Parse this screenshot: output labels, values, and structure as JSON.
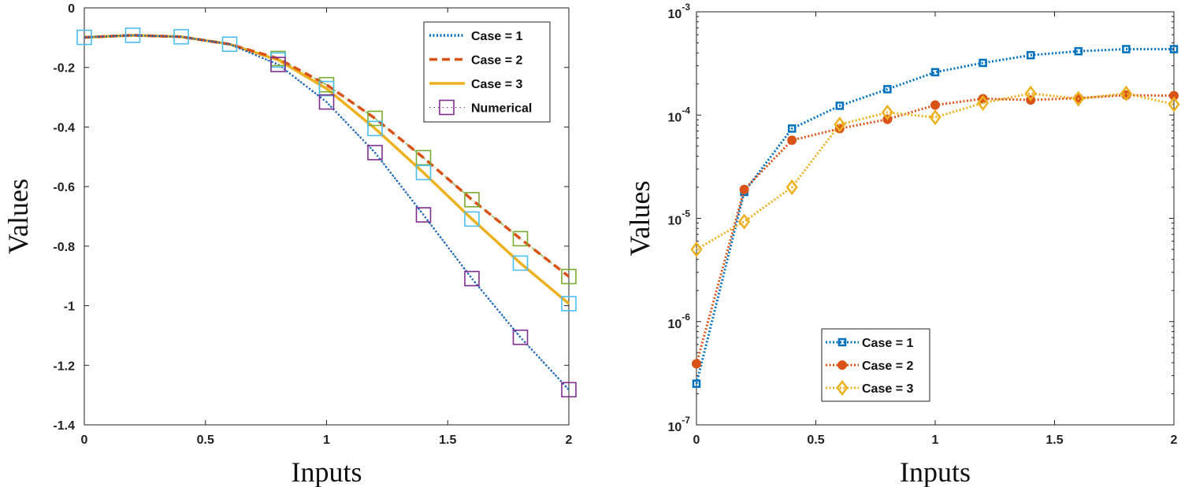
{
  "colors": {
    "blue": "#0072BD",
    "red": "#D95319",
    "yellow": "#EDB120",
    "purple": "#7E2F8E",
    "green": "#77AC30",
    "cyan": "#4DBEEE"
  },
  "chart_data": [
    {
      "type": "line",
      "title": "",
      "xlabel": "Inputs",
      "ylabel": "Values",
      "xlim": [
        0,
        2
      ],
      "ylim": [
        -1.4,
        0
      ],
      "xticks": [
        "0",
        "0.5",
        "1",
        "1.5",
        "2"
      ],
      "yticks": [
        "0",
        "-0.2",
        "-0.4",
        "-0.6",
        "-0.8",
        "-1",
        "-1.2",
        "-1.4"
      ],
      "legend_position": "top-right",
      "x": [
        0,
        0.2,
        0.4,
        0.6,
        0.8,
        1.0,
        1.2,
        1.4,
        1.6,
        1.8,
        2.0
      ],
      "series": [
        {
          "name": "Case = 1",
          "style": "dotted",
          "color": "blue",
          "values": [
            -0.099,
            -0.092,
            -0.097,
            -0.122,
            -0.19,
            -0.316,
            -0.486,
            -0.695,
            -0.909,
            -1.106,
            -1.282
          ]
        },
        {
          "name": "Case = 2",
          "style": "dashed",
          "color": "red",
          "values": [
            -0.099,
            -0.092,
            -0.097,
            -0.122,
            -0.17,
            -0.258,
            -0.371,
            -0.503,
            -0.644,
            -0.775,
            -0.902
          ]
        },
        {
          "name": "Case = 3",
          "style": "solid",
          "color": "yellow",
          "values": [
            -0.099,
            -0.092,
            -0.097,
            -0.122,
            -0.175,
            -0.271,
            -0.405,
            -0.553,
            -0.709,
            -0.857,
            -0.993
          ]
        },
        {
          "name": "Numerical",
          "style": "dotted-square",
          "color": "purple",
          "values": [
            -0.099,
            -0.092,
            -0.097,
            -0.122,
            -0.19,
            -0.316,
            -0.486,
            -0.695,
            -0.909,
            -1.106,
            -1.282
          ]
        }
      ],
      "extra_markers": [
        {
          "color": "green",
          "values": [
            null,
            null,
            null,
            null,
            -0.17,
            -0.258,
            -0.371,
            -0.503,
            -0.644,
            -0.775,
            -0.902
          ]
        },
        {
          "color": "cyan",
          "values": [
            -0.099,
            -0.092,
            -0.097,
            -0.122,
            -0.175,
            -0.271,
            -0.405,
            -0.553,
            -0.709,
            -0.857,
            -0.993
          ]
        }
      ]
    },
    {
      "type": "line",
      "title": "",
      "xlabel": "Inputs",
      "ylabel": "Values",
      "yscale": "log",
      "xlim": [
        0,
        2
      ],
      "ylim": [
        1e-07,
        0.001
      ],
      "xticks": [
        "0",
        "0.5",
        "1",
        "1.5",
        "2"
      ],
      "yticks": [
        {
          "base": "10",
          "exp": "-3"
        },
        {
          "base": "10",
          "exp": "-4"
        },
        {
          "base": "10",
          "exp": "-5"
        },
        {
          "base": "10",
          "exp": "-6"
        },
        {
          "base": "10",
          "exp": "-7"
        }
      ],
      "legend_position": "bottom-center",
      "x": [
        0,
        0.2,
        0.4,
        0.6,
        0.8,
        1.0,
        1.2,
        1.4,
        1.6,
        1.8,
        2.0
      ],
      "series": [
        {
          "name": "Case = 1",
          "marker": "square",
          "color": "blue",
          "values": [
            2.5e-07,
            1.8e-05,
            7.4e-05,
            0.000123,
            0.000178,
            0.00026,
            0.00032,
            0.00038,
            0.000415,
            0.000435,
            0.000435
          ]
        },
        {
          "name": "Case = 2",
          "marker": "star",
          "color": "red",
          "values": [
            3.9e-07,
            1.9e-05,
            5.7e-05,
            7.4e-05,
            9.1e-05,
            0.000125,
            0.000144,
            0.00014,
            0.000146,
            0.000156,
            0.000154
          ]
        },
        {
          "name": "Case = 3",
          "marker": "diamond",
          "color": "yellow",
          "values": [
            5e-06,
            9.3e-06,
            2e-05,
            8.1e-05,
            0.000106,
            9.5e-05,
            0.000131,
            0.000162,
            0.000144,
            0.000162,
            0.000127
          ]
        }
      ]
    }
  ]
}
